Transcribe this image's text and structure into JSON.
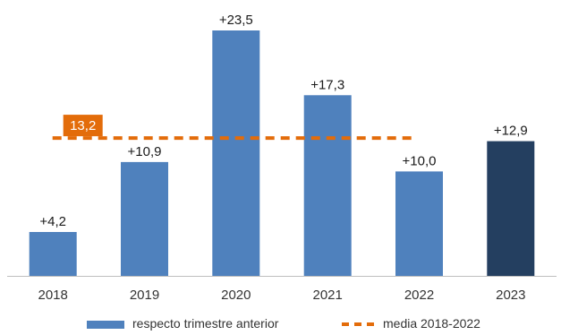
{
  "chart_data": {
    "type": "bar",
    "categories": [
      "2018",
      "2019",
      "2020",
      "2021",
      "2022",
      "2023"
    ],
    "series": [
      {
        "name": "respecto trimestre anterior",
        "values": [
          4.2,
          10.9,
          23.5,
          17.3,
          10.0,
          12.9
        ],
        "labels": [
          "+4,2",
          "+10,9",
          "+23,5",
          "+17,3",
          "+10,0",
          "+12,9"
        ],
        "color": "#4f81bd",
        "highlight_color": "#243f60",
        "highlight_index": 5
      }
    ],
    "reference_line": {
      "name": "media 2018-2022",
      "value": 13.2,
      "label": "13,2",
      "span": [
        "2018",
        "2022"
      ],
      "color": "#e36c0a",
      "style": "dashed"
    },
    "ylim": [
      0,
      23.5
    ],
    "grid": false,
    "legend": "bottom"
  }
}
